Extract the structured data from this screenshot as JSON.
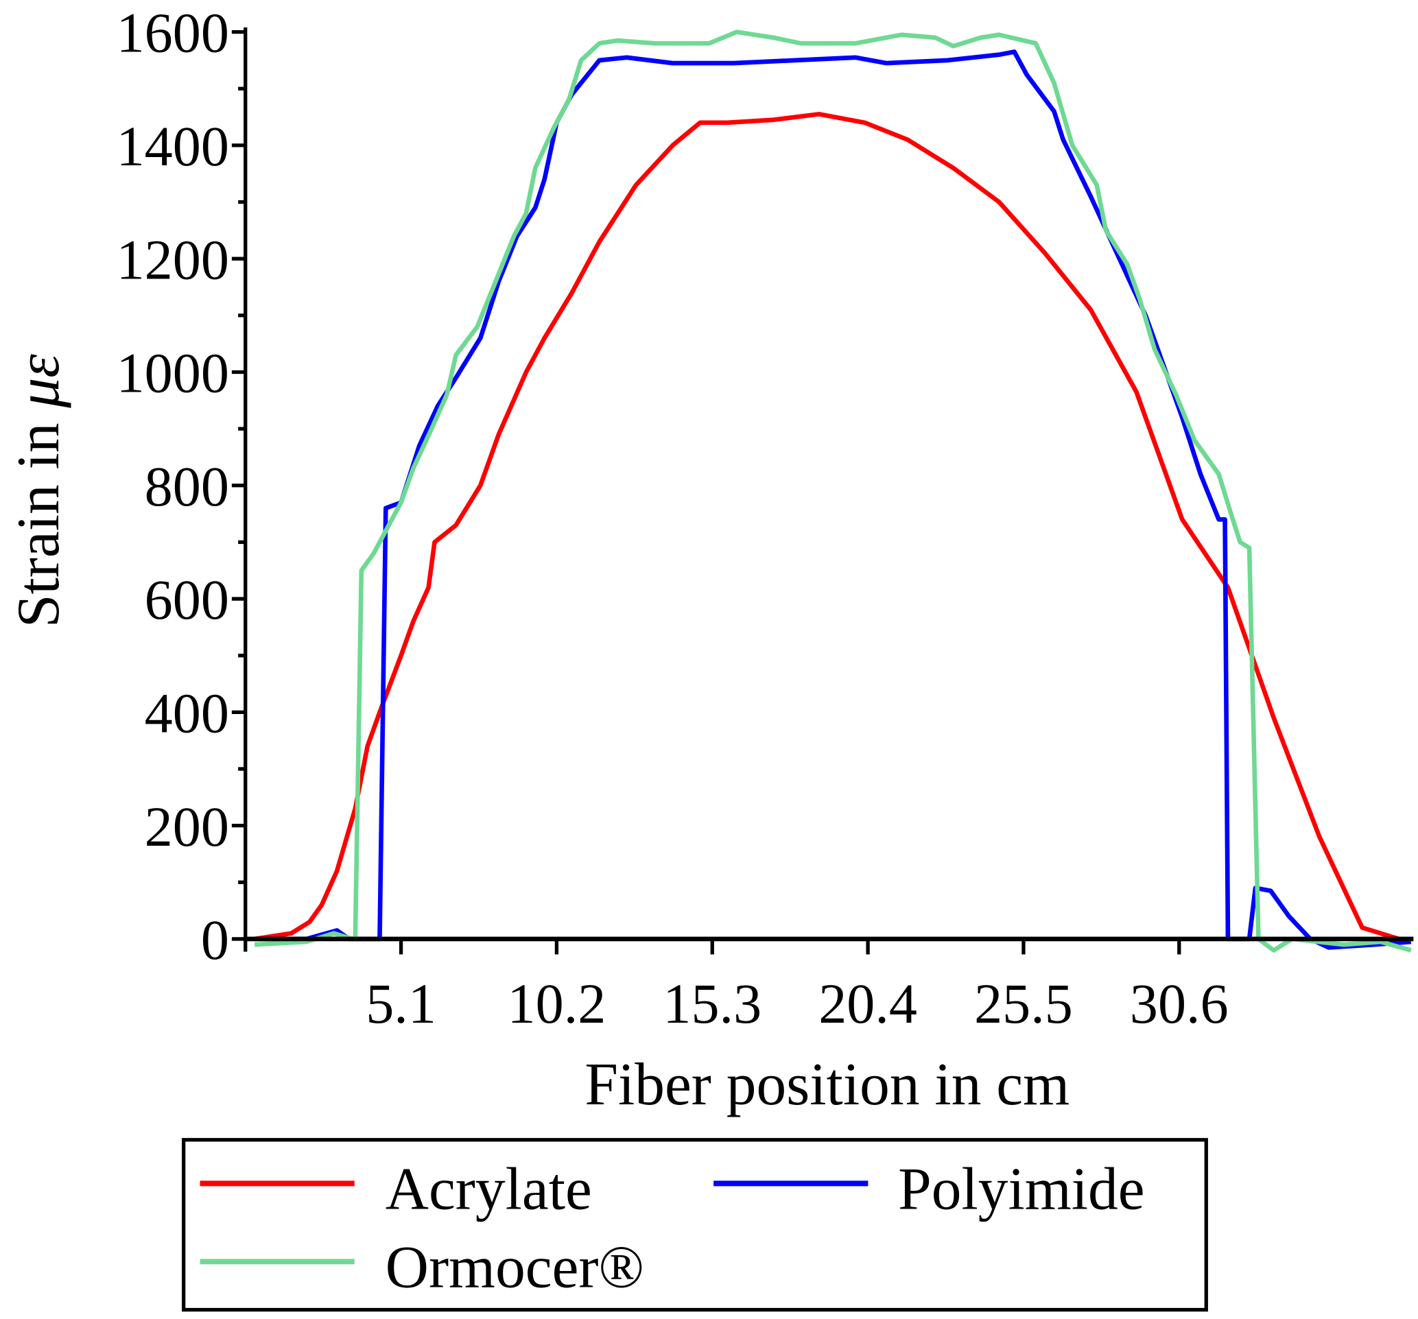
{
  "chart_data": {
    "type": "line",
    "title": "",
    "xlabel": "Fiber position in cm",
    "ylabel": "Strain in με",
    "xlim": [
      0,
      38.2
    ],
    "ylim": [
      0,
      1600
    ],
    "xticks": [
      5.1,
      10.2,
      15.3,
      20.4,
      25.5,
      30.6
    ],
    "xtick_labels": [
      "5.1",
      "10.2",
      "15.3",
      "20.4",
      "25.5",
      "30.6"
    ],
    "yticks": [
      0,
      200,
      400,
      600,
      800,
      1000,
      1200,
      1400,
      1600
    ],
    "ytick_labels": [
      "0",
      "200",
      "400",
      "600",
      "800",
      "1000",
      "1200",
      "1400",
      "1600"
    ],
    "grid": false,
    "legend_position": "bottom",
    "series": [
      {
        "name": "Acrylate",
        "color": "#ff0000",
        "x": [
          0.3,
          0.9,
          1.5,
          2.1,
          2.5,
          3.0,
          3.6,
          4.0,
          4.4,
          5.1,
          5.5,
          6.0,
          6.2,
          6.9,
          7.7,
          8.3,
          9.2,
          9.8,
          10.7,
          11.6,
          12.8,
          14.0,
          14.9,
          15.8,
          17.3,
          18.8,
          20.3,
          21.7,
          23.2,
          24.7,
          26.2,
          27.7,
          29.2,
          30.7,
          32.2,
          33.7,
          35.2,
          36.6,
          38.1
        ],
        "y": [
          0,
          5,
          10,
          30,
          60,
          120,
          230,
          340,
          400,
          500,
          560,
          620,
          700,
          730,
          800,
          890,
          1000,
          1060,
          1140,
          1230,
          1330,
          1400,
          1440,
          1440,
          1445,
          1455,
          1440,
          1410,
          1360,
          1300,
          1210,
          1110,
          965,
          740,
          620,
          390,
          180,
          20,
          -5
        ]
      },
      {
        "name": "Polyimide",
        "color": "#0000ff",
        "x": [
          0.3,
          2.0,
          3.0,
          3.4,
          4.4,
          4.6,
          5.1,
          5.7,
          6.3,
          6.9,
          7.7,
          8.3,
          8.9,
          9.5,
          9.8,
          10.2,
          10.7,
          11.6,
          12.5,
          14.0,
          16.0,
          18.0,
          20.0,
          21.0,
          23.0,
          24.7,
          25.2,
          25.6,
          26.5,
          26.8,
          27.7,
          28.6,
          29.5,
          30.7,
          31.3,
          31.9,
          32.1,
          32.2,
          32.9,
          33.1,
          33.6,
          34.2,
          34.9,
          35.5,
          37.0,
          38.2
        ],
        "y": [
          0,
          0,
          15,
          0,
          0,
          760,
          770,
          870,
          940,
          990,
          1060,
          1160,
          1240,
          1290,
          1340,
          1440,
          1490,
          1550,
          1555,
          1545,
          1545,
          1550,
          1555,
          1545,
          1550,
          1560,
          1565,
          1525,
          1460,
          1410,
          1310,
          1205,
          1100,
          920,
          820,
          740,
          740,
          0,
          0,
          90,
          85,
          40,
          0,
          -15,
          -10,
          -5
        ]
      },
      {
        "name": "Ormocer®",
        "color": "#6fd993",
        "x": [
          0.3,
          2.0,
          2.9,
          3.5,
          3.6,
          3.8,
          4.2,
          4.6,
          5.1,
          5.5,
          6.1,
          6.6,
          6.9,
          7.6,
          8.2,
          8.8,
          9.2,
          9.5,
          10.1,
          10.6,
          11.0,
          11.6,
          12.2,
          13.4,
          15.2,
          16.1,
          17.3,
          18.2,
          20.0,
          21.5,
          22.6,
          23.2,
          24.1,
          24.7,
          25.9,
          26.5,
          27.1,
          27.9,
          28.2,
          28.9,
          29.3,
          29.8,
          30.5,
          31.1,
          31.9,
          32.3,
          32.6,
          32.9,
          33.2,
          33.7,
          34.3,
          36.0,
          37.2,
          38.2
        ],
        "y": [
          -10,
          -5,
          10,
          0,
          0,
          650,
          680,
          720,
          770,
          830,
          900,
          960,
          1030,
          1080,
          1160,
          1240,
          1280,
          1360,
          1430,
          1480,
          1550,
          1580,
          1585,
          1580,
          1580,
          1600,
          1590,
          1580,
          1580,
          1595,
          1590,
          1575,
          1590,
          1595,
          1580,
          1510,
          1400,
          1330,
          1250,
          1190,
          1130,
          1040,
          960,
          880,
          820,
          750,
          700,
          690,
          0,
          -20,
          0,
          -10,
          -5,
          -20
        ]
      }
    ]
  }
}
